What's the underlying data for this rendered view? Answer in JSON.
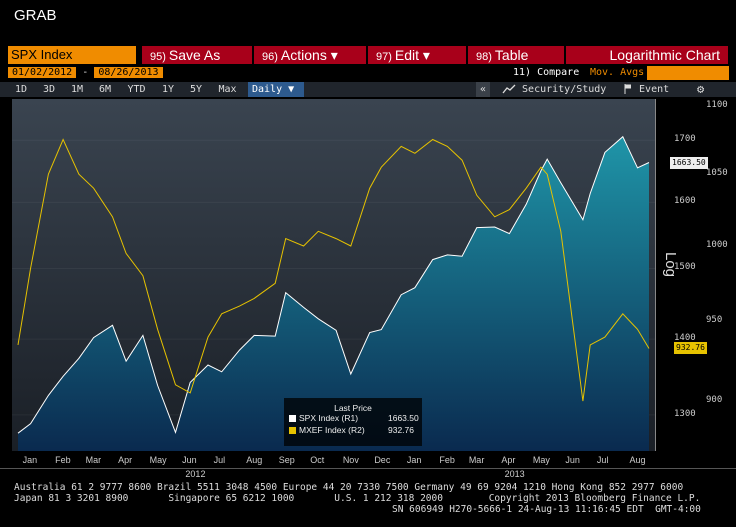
{
  "window": {
    "title": "GRAB"
  },
  "toolbar": {
    "ticker": "SPX Index",
    "save": {
      "num": "95)",
      "label": "Save As"
    },
    "actions": {
      "num": "96)",
      "label": "Actions ▾"
    },
    "edit": {
      "num": "97)",
      "label": "Edit ▾"
    },
    "table": {
      "num": "98)",
      "label": "Table"
    },
    "chart_type": "Logarithmic Chart",
    "start_date": "01/02/2012",
    "end_date": "08/26/2013",
    "compare": "11) Compare",
    "mov_avgs": "Mov. Avgs"
  },
  "periods": [
    "1D",
    "3D",
    "1M",
    "6M",
    "YTD",
    "1Y",
    "5Y",
    "Max"
  ],
  "frequency": "Daily ▼",
  "tools": {
    "collapse": "«",
    "security_study": "Security/Study",
    "event": "Event",
    "gear": "⚙"
  },
  "colors": {
    "spx": "#ffffff",
    "mxef": "#e6c200",
    "fill_top": "#1f95a8",
    "fill_bottom": "#0a2a4f",
    "accent": "#f08c00",
    "button": "#a8001a"
  },
  "chart_data": {
    "type": "line",
    "scale": "log",
    "x_ticks": [
      "Jan",
      "Feb",
      "Mar",
      "Apr",
      "May",
      "Jun",
      "Jul",
      "Aug",
      "Sep",
      "Oct",
      "Nov",
      "Dec",
      "Jan",
      "Feb",
      "Mar",
      "Apr",
      "May",
      "Jun",
      "Jul",
      "Aug"
    ],
    "year_labels": [
      "2012",
      "2013"
    ],
    "axis_label": "Log",
    "y_left": {
      "ticks": [
        1300,
        1400,
        1500,
        1600,
        1700
      ],
      "range": [
        1255,
        1770
      ]
    },
    "y_right": {
      "ticks": [
        900,
        950,
        1000,
        1050,
        1100
      ],
      "range": [
        870,
        1105
      ]
    },
    "legend": {
      "title": "Last Price",
      "entries": [
        {
          "label": "SPX Index  (R1)",
          "value": "1663.50"
        },
        {
          "label": "MXEF Index  (R2)",
          "value": "932.76"
        }
      ]
    },
    "last_values": {
      "spx": "1663.50",
      "mxef": "932.76"
    },
    "series": [
      {
        "name": "SPX Index",
        "axis": "R1",
        "dates": [
          "2012-01-03",
          "2012-01-15",
          "2012-02-01",
          "2012-02-15",
          "2012-03-01",
          "2012-03-15",
          "2012-04-02",
          "2012-04-15",
          "2012-05-01",
          "2012-05-15",
          "2012-06-01",
          "2012-06-15",
          "2012-07-02",
          "2012-07-15",
          "2012-08-01",
          "2012-08-15",
          "2012-09-04",
          "2012-09-14",
          "2012-10-01",
          "2012-10-15",
          "2012-11-01",
          "2012-11-15",
          "2012-12-03",
          "2012-12-14",
          "2013-01-02",
          "2013-01-15",
          "2013-02-01",
          "2013-02-15",
          "2013-03-01",
          "2013-03-15",
          "2013-04-01",
          "2013-04-15",
          "2013-05-01",
          "2013-05-15",
          "2013-05-21",
          "2013-06-03",
          "2013-06-24",
          "2013-07-01",
          "2013-07-15",
          "2013-08-01",
          "2013-08-15",
          "2013-08-26"
        ],
        "values": [
          1277,
          1289,
          1325,
          1350,
          1374,
          1402,
          1419,
          1370,
          1405,
          1338,
          1278,
          1342,
          1365,
          1356,
          1385,
          1405,
          1404,
          1465,
          1444,
          1428,
          1412,
          1353,
          1409,
          1413,
          1462,
          1472,
          1513,
          1520,
          1518,
          1561,
          1562,
          1552,
          1597,
          1650,
          1669,
          1631,
          1573,
          1614,
          1680,
          1706,
          1655,
          1663.5
        ]
      },
      {
        "name": "MXEF Index",
        "axis": "R2",
        "dates": [
          "2012-01-03",
          "2012-01-15",
          "2012-02-01",
          "2012-02-15",
          "2012-03-01",
          "2012-03-15",
          "2012-04-02",
          "2012-04-15",
          "2012-05-01",
          "2012-05-15",
          "2012-06-01",
          "2012-06-15",
          "2012-07-02",
          "2012-07-15",
          "2012-08-01",
          "2012-08-15",
          "2012-09-04",
          "2012-09-14",
          "2012-10-01",
          "2012-10-15",
          "2012-11-01",
          "2012-11-15",
          "2012-12-03",
          "2012-12-14",
          "2013-01-02",
          "2013-01-15",
          "2013-02-01",
          "2013-02-15",
          "2013-03-01",
          "2013-03-15",
          "2013-04-01",
          "2013-04-15",
          "2013-05-01",
          "2013-05-15",
          "2013-05-21",
          "2013-06-03",
          "2013-06-24",
          "2013-07-01",
          "2013-07-15",
          "2013-08-01",
          "2013-08-15",
          "2013-08-26"
        ],
        "values": [
          935,
          985,
          1050,
          1075,
          1050,
          1040,
          1020,
          995,
          980,
          945,
          910,
          905,
          940,
          955,
          960,
          965,
          975,
          1005,
          1000,
          1010,
          1005,
          1000,
          1040,
          1055,
          1070,
          1065,
          1075,
          1070,
          1060,
          1035,
          1020,
          1025,
          1040,
          1055,
          1050,
          1010,
          900,
          935,
          940,
          955,
          945,
          932.76
        ]
      }
    ]
  },
  "footer": {
    "line1": "Australia 61 2 9777 8600 Brazil 5511 3048 4500 Europe 44 20 7330 7500 Germany 49 69 9204 1210 Hong Kong 852 2977 6000",
    "line2": "Japan 81 3 3201 8900       Singapore 65 6212 1000       U.S. 1 212 318 2000        Copyright 2013 Bloomberg Finance L.P.",
    "line3": "SN 606949 H270-5666-1 24-Aug-13 11:16:45 EDT  GMT-4:00"
  }
}
